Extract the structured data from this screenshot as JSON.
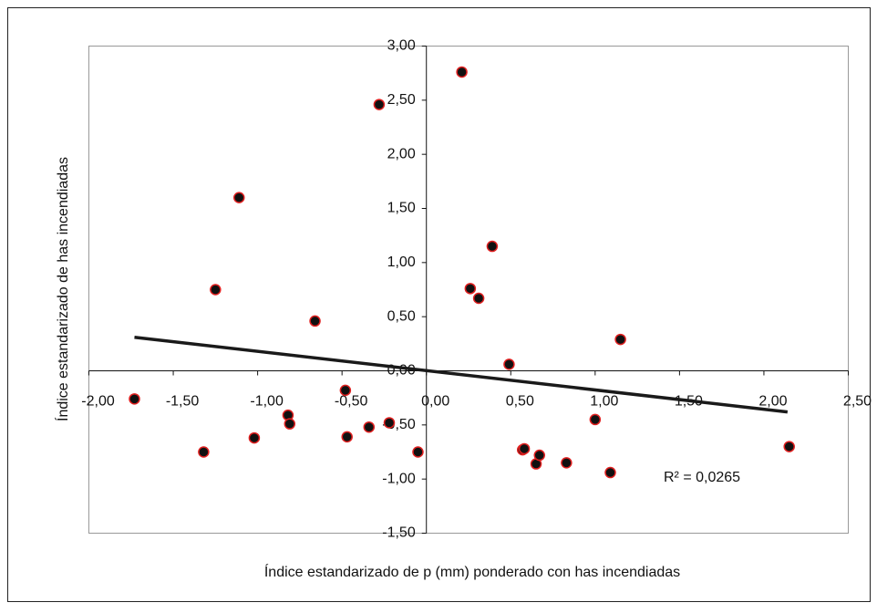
{
  "chart_data": {
    "type": "scatter",
    "x_label": "Índice estandarizado de p (mm) ponderado con has incendiadas",
    "y_label": "Índice estandarizado de has incendiadas",
    "annotation": "R² = 0,0265",
    "xlim": [
      -2,
      2.5
    ],
    "ylim": [
      -1.5,
      3
    ],
    "xticks": [
      {
        "value": -2,
        "label": "-2,00"
      },
      {
        "value": -1.5,
        "label": "-1,50"
      },
      {
        "value": -1,
        "label": "-1,00"
      },
      {
        "value": -0.5,
        "label": "-0,50"
      },
      {
        "value": 0,
        "label": "0,00"
      },
      {
        "value": 0.5,
        "label": "0,50"
      },
      {
        "value": 1,
        "label": "1,00"
      },
      {
        "value": 1.5,
        "label": "1,50"
      },
      {
        "value": 2,
        "label": "2,00"
      },
      {
        "value": 2.5,
        "label": "2,50"
      }
    ],
    "yticks": [
      {
        "value": -1.5,
        "label": "-1,50"
      },
      {
        "value": -1,
        "label": "-1,00"
      },
      {
        "value": -0.5,
        "label": "-0,50"
      },
      {
        "value": 0,
        "label": "0,00"
      },
      {
        "value": 0.5,
        "label": "0,50"
      },
      {
        "value": 1,
        "label": "1,00"
      },
      {
        "value": 1.5,
        "label": "1,50"
      },
      {
        "value": 2,
        "label": "2,00"
      },
      {
        "value": 2.5,
        "label": "2,50"
      },
      {
        "value": 3,
        "label": "3,00"
      }
    ],
    "color": "#111111",
    "edge_color": "#e02020",
    "x": [
      -1.73,
      -1.32,
      -1.25,
      -1.11,
      -1.02,
      -0.82,
      -0.81,
      -0.66,
      -0.48,
      -0.47,
      -0.34,
      -0.28,
      -0.22,
      -0.05,
      0.21,
      0.26,
      0.31,
      0.39,
      0.49,
      0.57,
      0.58,
      0.65,
      0.67,
      0.83,
      1.0,
      1.09,
      1.15,
      2.15
    ],
    "y": [
      -0.26,
      -0.75,
      0.75,
      1.6,
      -0.62,
      -0.41,
      -0.49,
      0.46,
      -0.18,
      -0.61,
      -0.52,
      2.46,
      -0.48,
      -0.75,
      2.76,
      0.76,
      0.67,
      1.15,
      0.06,
      -0.73,
      -0.72,
      -0.86,
      -0.78,
      -0.85,
      -0.45,
      -0.94,
      0.29,
      -0.7
    ],
    "trendline": {
      "x": [
        -1.73,
        2.14
      ],
      "y": [
        0.31,
        -0.38
      ],
      "color": "#1a1a1a"
    }
  }
}
